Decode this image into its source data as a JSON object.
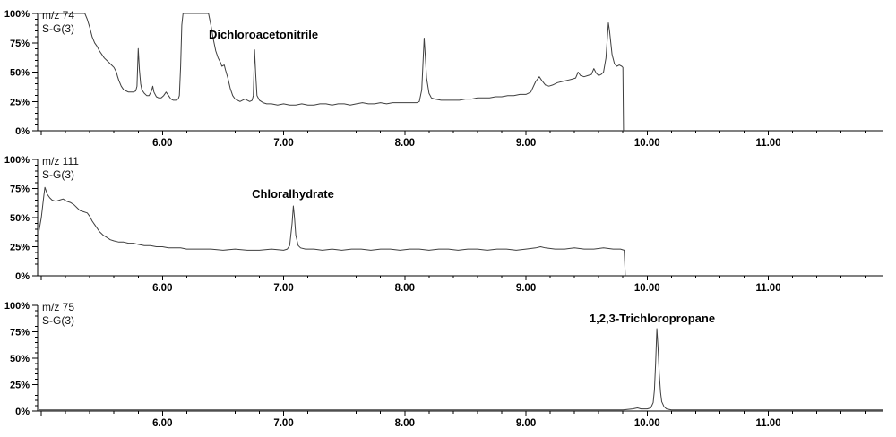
{
  "figure": {
    "background": "#ffffff",
    "trace_color": "#3f3f3f",
    "axis_color": "#000000",
    "text_color": "#000000"
  },
  "axes": {
    "x": {
      "range": [
        4.97,
        11.95
      ],
      "major_ticks": [
        6,
        7,
        8,
        9,
        10,
        11
      ],
      "major_tick_labels": [
        "6.00",
        "7.00",
        "8.00",
        "9.00",
        "10.00",
        "11.00"
      ],
      "minor_step": 0.2
    },
    "y": {
      "range": [
        0,
        100
      ],
      "major_ticks": [
        0,
        25,
        50,
        75,
        100
      ],
      "major_tick_labels": [
        "0%",
        "25%",
        "50%",
        "75%",
        "100%"
      ],
      "minor_step": 5
    }
  },
  "chart_data": [
    {
      "type": "line",
      "trace_label": "m/z 74",
      "filter_label": "S-G(3)",
      "annotation": {
        "text": "Dichloroacetonitrile",
        "t": 6.38,
        "pct_top": 88,
        "align": "start"
      },
      "signal_end_t": 9.8,
      "points": [
        [
          4.98,
          100
        ],
        [
          5.36,
          100
        ],
        [
          5.38,
          95
        ],
        [
          5.4,
          88
        ],
        [
          5.42,
          80
        ],
        [
          5.44,
          75
        ],
        [
          5.46,
          72
        ],
        [
          5.48,
          68
        ],
        [
          5.5,
          65
        ],
        [
          5.52,
          62
        ],
        [
          5.54,
          60
        ],
        [
          5.56,
          58
        ],
        [
          5.58,
          56
        ],
        [
          5.6,
          54
        ],
        [
          5.62,
          50
        ],
        [
          5.63,
          46
        ],
        [
          5.64,
          43
        ],
        [
          5.66,
          38
        ],
        [
          5.68,
          35
        ],
        [
          5.7,
          34
        ],
        [
          5.72,
          33
        ],
        [
          5.74,
          33
        ],
        [
          5.76,
          33
        ],
        [
          5.78,
          34
        ],
        [
          5.79,
          38
        ],
        [
          5.8,
          70
        ],
        [
          5.81,
          52
        ],
        [
          5.82,
          40
        ],
        [
          5.83,
          35
        ],
        [
          5.85,
          32
        ],
        [
          5.87,
          30
        ],
        [
          5.89,
          30
        ],
        [
          5.91,
          34
        ],
        [
          5.92,
          38
        ],
        [
          5.93,
          33
        ],
        [
          5.95,
          29
        ],
        [
          5.97,
          28
        ],
        [
          5.99,
          28
        ],
        [
          6.01,
          30
        ],
        [
          6.03,
          33
        ],
        [
          6.05,
          30
        ],
        [
          6.07,
          27
        ],
        [
          6.09,
          26
        ],
        [
          6.11,
          26
        ],
        [
          6.13,
          27
        ],
        [
          6.14,
          30
        ],
        [
          6.15,
          55
        ],
        [
          6.16,
          90
        ],
        [
          6.17,
          100
        ],
        [
          6.38,
          100
        ],
        [
          6.4,
          90
        ],
        [
          6.42,
          78
        ],
        [
          6.44,
          68
        ],
        [
          6.46,
          62
        ],
        [
          6.48,
          58
        ],
        [
          6.49,
          55
        ],
        [
          6.51,
          56
        ],
        [
          6.52,
          52
        ],
        [
          6.54,
          45
        ],
        [
          6.56,
          36
        ],
        [
          6.58,
          30
        ],
        [
          6.6,
          27
        ],
        [
          6.62,
          26
        ],
        [
          6.64,
          25
        ],
        [
          6.66,
          26
        ],
        [
          6.68,
          27
        ],
        [
          6.7,
          26
        ],
        [
          6.72,
          25
        ],
        [
          6.74,
          26
        ],
        [
          6.75,
          30
        ],
        [
          6.76,
          69
        ],
        [
          6.77,
          48
        ],
        [
          6.78,
          30
        ],
        [
          6.8,
          26
        ],
        [
          6.83,
          24
        ],
        [
          6.86,
          23
        ],
        [
          6.9,
          23
        ],
        [
          6.95,
          22
        ],
        [
          7.0,
          23
        ],
        [
          7.05,
          22
        ],
        [
          7.1,
          22
        ],
        [
          7.15,
          23
        ],
        [
          7.2,
          22
        ],
        [
          7.25,
          22
        ],
        [
          7.3,
          23
        ],
        [
          7.35,
          23
        ],
        [
          7.4,
          22
        ],
        [
          7.45,
          23
        ],
        [
          7.5,
          23
        ],
        [
          7.55,
          22
        ],
        [
          7.6,
          23
        ],
        [
          7.65,
          24
        ],
        [
          7.7,
          23
        ],
        [
          7.75,
          23
        ],
        [
          7.8,
          24
        ],
        [
          7.85,
          23
        ],
        [
          7.9,
          24
        ],
        [
          7.95,
          24
        ],
        [
          8.0,
          24
        ],
        [
          8.05,
          24
        ],
        [
          8.1,
          24
        ],
        [
          8.12,
          25
        ],
        [
          8.14,
          35
        ],
        [
          8.16,
          79
        ],
        [
          8.17,
          62
        ],
        [
          8.18,
          45
        ],
        [
          8.2,
          32
        ],
        [
          8.22,
          28
        ],
        [
          8.25,
          27
        ],
        [
          8.3,
          26
        ],
        [
          8.35,
          26
        ],
        [
          8.4,
          26
        ],
        [
          8.45,
          26
        ],
        [
          8.5,
          27
        ],
        [
          8.55,
          27
        ],
        [
          8.6,
          28
        ],
        [
          8.65,
          28
        ],
        [
          8.7,
          28
        ],
        [
          8.75,
          29
        ],
        [
          8.8,
          29
        ],
        [
          8.85,
          30
        ],
        [
          8.9,
          30
        ],
        [
          8.95,
          31
        ],
        [
          9.0,
          31
        ],
        [
          9.04,
          33
        ],
        [
          9.08,
          42
        ],
        [
          9.11,
          46
        ],
        [
          9.13,
          43
        ],
        [
          9.16,
          39
        ],
        [
          9.19,
          38
        ],
        [
          9.22,
          39
        ],
        [
          9.26,
          41
        ],
        [
          9.3,
          42
        ],
        [
          9.34,
          43
        ],
        [
          9.38,
          44
        ],
        [
          9.41,
          45
        ],
        [
          9.43,
          50
        ],
        [
          9.45,
          47
        ],
        [
          9.48,
          46
        ],
        [
          9.51,
          47
        ],
        [
          9.54,
          48
        ],
        [
          9.56,
          53
        ],
        [
          9.58,
          49
        ],
        [
          9.6,
          47
        ],
        [
          9.62,
          48
        ],
        [
          9.64,
          50
        ],
        [
          9.66,
          62
        ],
        [
          9.68,
          92
        ],
        [
          9.69,
          85
        ],
        [
          9.71,
          65
        ],
        [
          9.73,
          57
        ],
        [
          9.75,
          55
        ],
        [
          9.77,
          56
        ],
        [
          9.79,
          55
        ],
        [
          9.8,
          54
        ],
        [
          9.805,
          0
        ]
      ]
    },
    {
      "type": "line",
      "trace_label": "m/z 111",
      "filter_label": "S-G(3)",
      "annotation": {
        "text": "Chloralhydrate",
        "t": 7.08,
        "pct_top": 76,
        "align": "middle"
      },
      "signal_end_t": 9.82,
      "points": [
        [
          4.98,
          38
        ],
        [
          5.0,
          50
        ],
        [
          5.02,
          68
        ],
        [
          5.03,
          76
        ],
        [
          5.05,
          70
        ],
        [
          5.07,
          67
        ],
        [
          5.09,
          65
        ],
        [
          5.12,
          64
        ],
        [
          5.15,
          65
        ],
        [
          5.18,
          66
        ],
        [
          5.21,
          64
        ],
        [
          5.24,
          63
        ],
        [
          5.27,
          61
        ],
        [
          5.3,
          58
        ],
        [
          5.32,
          56
        ],
        [
          5.35,
          55
        ],
        [
          5.38,
          54
        ],
        [
          5.4,
          51
        ],
        [
          5.42,
          47
        ],
        [
          5.44,
          44
        ],
        [
          5.46,
          41
        ],
        [
          5.48,
          38
        ],
        [
          5.51,
          35
        ],
        [
          5.54,
          33
        ],
        [
          5.57,
          31
        ],
        [
          5.6,
          30
        ],
        [
          5.64,
          29
        ],
        [
          5.68,
          29
        ],
        [
          5.72,
          28
        ],
        [
          5.76,
          28
        ],
        [
          5.8,
          27
        ],
        [
          5.85,
          26
        ],
        [
          5.9,
          26
        ],
        [
          5.95,
          25
        ],
        [
          6.0,
          25
        ],
        [
          6.05,
          24
        ],
        [
          6.1,
          24
        ],
        [
          6.15,
          24
        ],
        [
          6.2,
          23
        ],
        [
          6.3,
          23
        ],
        [
          6.4,
          23
        ],
        [
          6.5,
          22
        ],
        [
          6.6,
          23
        ],
        [
          6.7,
          22
        ],
        [
          6.8,
          22
        ],
        [
          6.9,
          23
        ],
        [
          7.0,
          22
        ],
        [
          7.03,
          23
        ],
        [
          7.05,
          26
        ],
        [
          7.07,
          45
        ],
        [
          7.08,
          60
        ],
        [
          7.09,
          50
        ],
        [
          7.1,
          35
        ],
        [
          7.12,
          26
        ],
        [
          7.14,
          24
        ],
        [
          7.18,
          23
        ],
        [
          7.25,
          23
        ],
        [
          7.32,
          22
        ],
        [
          7.4,
          23
        ],
        [
          7.48,
          22
        ],
        [
          7.56,
          23
        ],
        [
          7.64,
          23
        ],
        [
          7.72,
          22
        ],
        [
          7.8,
          23
        ],
        [
          7.88,
          23
        ],
        [
          7.96,
          22
        ],
        [
          8.04,
          23
        ],
        [
          8.12,
          23
        ],
        [
          8.2,
          22
        ],
        [
          8.28,
          23
        ],
        [
          8.36,
          23
        ],
        [
          8.44,
          22
        ],
        [
          8.52,
          23
        ],
        [
          8.6,
          23
        ],
        [
          8.68,
          22
        ],
        [
          8.76,
          23
        ],
        [
          8.84,
          23
        ],
        [
          8.92,
          22
        ],
        [
          9.0,
          23
        ],
        [
          9.08,
          24
        ],
        [
          9.12,
          25
        ],
        [
          9.16,
          24
        ],
        [
          9.24,
          23
        ],
        [
          9.32,
          23
        ],
        [
          9.4,
          24
        ],
        [
          9.48,
          23
        ],
        [
          9.56,
          23
        ],
        [
          9.64,
          24
        ],
        [
          9.72,
          23
        ],
        [
          9.78,
          23
        ],
        [
          9.81,
          22
        ],
        [
          9.82,
          0
        ]
      ]
    },
    {
      "type": "line",
      "trace_label": "m/z 75",
      "filter_label": "S-G(3)",
      "annotation": {
        "text": "1,2,3-Trichloropropane",
        "t": 10.04,
        "pct_top": 94,
        "align": "middle"
      },
      "signal_end_t": 11.95,
      "points": [
        [
          4.98,
          1
        ],
        [
          5.2,
          1
        ],
        [
          5.4,
          1
        ],
        [
          5.6,
          1
        ],
        [
          5.8,
          1
        ],
        [
          6.0,
          1
        ],
        [
          6.2,
          1
        ],
        [
          6.4,
          1
        ],
        [
          6.6,
          1
        ],
        [
          6.8,
          1
        ],
        [
          7.0,
          1
        ],
        [
          7.2,
          1
        ],
        [
          7.4,
          1
        ],
        [
          7.6,
          1
        ],
        [
          7.8,
          1
        ],
        [
          8.0,
          1
        ],
        [
          8.2,
          1
        ],
        [
          8.4,
          1
        ],
        [
          8.6,
          1
        ],
        [
          8.8,
          1
        ],
        [
          9.0,
          1
        ],
        [
          9.2,
          1
        ],
        [
          9.4,
          1
        ],
        [
          9.6,
          1
        ],
        [
          9.8,
          1
        ],
        [
          9.88,
          2
        ],
        [
          9.92,
          3
        ],
        [
          9.95,
          2
        ],
        [
          10.0,
          2
        ],
        [
          10.03,
          3
        ],
        [
          10.05,
          8
        ],
        [
          10.06,
          20
        ],
        [
          10.07,
          45
        ],
        [
          10.08,
          78
        ],
        [
          10.09,
          60
        ],
        [
          10.1,
          35
        ],
        [
          10.11,
          18
        ],
        [
          10.12,
          9
        ],
        [
          10.14,
          4
        ],
        [
          10.16,
          2
        ],
        [
          10.2,
          1
        ],
        [
          10.4,
          1
        ],
        [
          10.6,
          1
        ],
        [
          10.8,
          1
        ],
        [
          11.0,
          1
        ],
        [
          11.2,
          1
        ],
        [
          11.4,
          1
        ],
        [
          11.6,
          1
        ],
        [
          11.8,
          1
        ],
        [
          11.95,
          1
        ]
      ]
    }
  ]
}
